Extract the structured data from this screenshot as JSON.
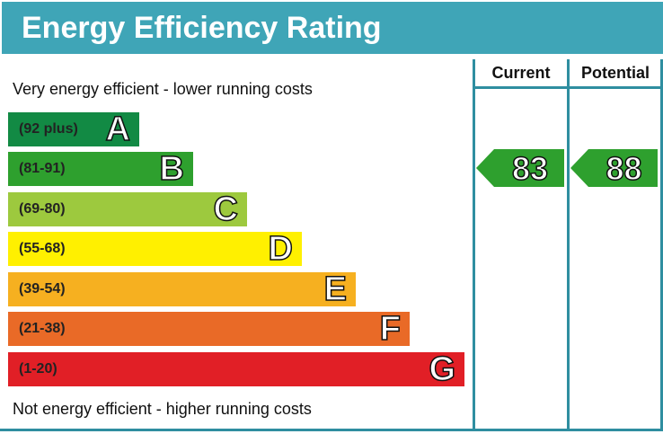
{
  "title": "Energy Efficiency Rating",
  "chart_data": {
    "type": "bar",
    "title": "Energy Efficiency Rating",
    "top_caption": "Very energy efficient - lower running costs",
    "bottom_caption": "Not energy efficient - higher running costs",
    "bands": [
      {
        "letter": "A",
        "range": "(92 plus)",
        "color": "#128a44"
      },
      {
        "letter": "B",
        "range": "(81-91)",
        "color": "#2ea02e"
      },
      {
        "letter": "C",
        "range": "(69-80)",
        "color": "#9dc93e"
      },
      {
        "letter": "D",
        "range": "(55-68)",
        "color": "#fff000"
      },
      {
        "letter": "E",
        "range": "(39-54)",
        "color": "#f6b020"
      },
      {
        "letter": "F",
        "range": "(21-38)",
        "color": "#e96a27"
      },
      {
        "letter": "G",
        "range": "(1-20)",
        "color": "#e11f26"
      }
    ],
    "columns": [
      "Current",
      "Potential"
    ],
    "current": {
      "value": "83",
      "band": "B",
      "color": "#2ea02e"
    },
    "potential": {
      "value": "88",
      "band": "B",
      "color": "#2ea02e"
    }
  }
}
